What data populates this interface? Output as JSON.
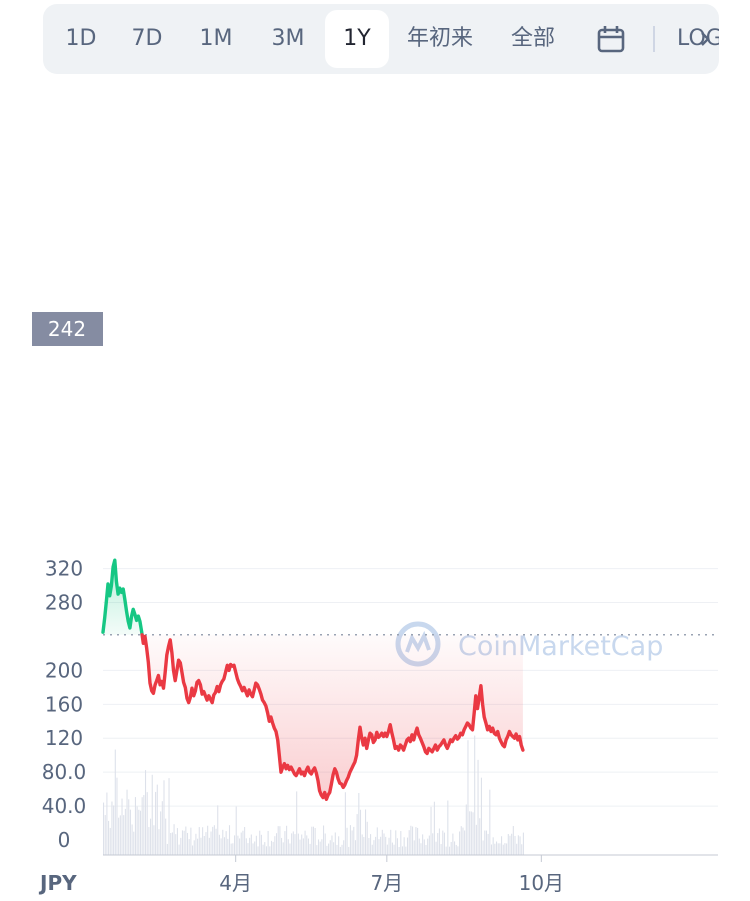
{
  "timeframe_tabs": [
    {
      "label": "1D",
      "active": false
    },
    {
      "label": "7D",
      "active": false
    },
    {
      "label": "1M",
      "active": false
    },
    {
      "label": "3M",
      "active": false
    },
    {
      "label": "1Y",
      "active": true
    },
    {
      "label": "年初来",
      "active": false
    },
    {
      "label": "全部",
      "active": false
    }
  ],
  "calendar_icon": "calendar-icon",
  "log_label": "LOG",
  "watermark": "CoinMarketCap",
  "currency_label": "JPY",
  "colors": {
    "up": "#16c784",
    "down": "#ea3943",
    "accent_bg": "#eff2f5",
    "label_bg": "#858ca2"
  },
  "chart_data": {
    "type": "line",
    "baseline_label": "242",
    "baseline_value": 242,
    "ylim": [
      0,
      350
    ],
    "y_ticks": [
      {
        "label": "320",
        "value": 320
      },
      {
        "label": "280",
        "value": 280
      },
      {
        "label": "200",
        "value": 200
      },
      {
        "label": "160",
        "value": 160
      },
      {
        "label": "120",
        "value": 120
      },
      {
        "label": "80.0",
        "value": 80
      },
      {
        "label": "40.0",
        "value": 40
      },
      {
        "label": "0",
        "value": 0
      }
    ],
    "x_ticks": [
      {
        "label": "4月",
        "day": 79
      },
      {
        "label": "7月",
        "day": 169
      },
      {
        "label": "10月",
        "day": 261
      }
    ],
    "x_days": 365,
    "price": [
      [
        0,
        245
      ],
      [
        1,
        262
      ],
      [
        2,
        282
      ],
      [
        3,
        302
      ],
      [
        4,
        288
      ],
      [
        5,
        300
      ],
      [
        6,
        322
      ],
      [
        7,
        330
      ],
      [
        8,
        305
      ],
      [
        9,
        290
      ],
      [
        10,
        297
      ],
      [
        11,
        292
      ],
      [
        12,
        296
      ],
      [
        13,
        284
      ],
      [
        14,
        270
      ],
      [
        15,
        258
      ],
      [
        16,
        250
      ],
      [
        17,
        264
      ],
      [
        18,
        272
      ],
      [
        19,
        266
      ],
      [
        20,
        259
      ],
      [
        21,
        264
      ],
      [
        22,
        258
      ],
      [
        23,
        246
      ],
      [
        24,
        232
      ],
      [
        25,
        240
      ],
      [
        26,
        226
      ],
      [
        27,
        210
      ],
      [
        28,
        185
      ],
      [
        29,
        176
      ],
      [
        30,
        173
      ],
      [
        31,
        183
      ],
      [
        32,
        188
      ],
      [
        33,
        194
      ],
      [
        34,
        183
      ],
      [
        35,
        187
      ],
      [
        36,
        179
      ],
      [
        37,
        197
      ],
      [
        38,
        218
      ],
      [
        39,
        228
      ],
      [
        40,
        236
      ],
      [
        41,
        221
      ],
      [
        42,
        200
      ],
      [
        43,
        188
      ],
      [
        44,
        200
      ],
      [
        45,
        212
      ],
      [
        46,
        209
      ],
      [
        47,
        198
      ],
      [
        48,
        186
      ],
      [
        49,
        180
      ],
      [
        50,
        167
      ],
      [
        51,
        162
      ],
      [
        52,
        168
      ],
      [
        53,
        179
      ],
      [
        54,
        170
      ],
      [
        55,
        176
      ],
      [
        56,
        186
      ],
      [
        57,
        188
      ],
      [
        58,
        183
      ],
      [
        59,
        172
      ],
      [
        60,
        175
      ],
      [
        61,
        170
      ],
      [
        62,
        165
      ],
      [
        63,
        170
      ],
      [
        64,
        166
      ],
      [
        65,
        162
      ],
      [
        66,
        171
      ],
      [
        67,
        174
      ],
      [
        68,
        181
      ],
      [
        69,
        175
      ],
      [
        70,
        183
      ],
      [
        71,
        187
      ],
      [
        72,
        190
      ],
      [
        73,
        198
      ],
      [
        74,
        206
      ],
      [
        75,
        200
      ],
      [
        76,
        207
      ],
      [
        77,
        205
      ],
      [
        78,
        206
      ],
      [
        79,
        198
      ],
      [
        80,
        190
      ],
      [
        81,
        185
      ],
      [
        82,
        181
      ],
      [
        83,
        176
      ],
      [
        84,
        180
      ],
      [
        85,
        175
      ],
      [
        86,
        170
      ],
      [
        87,
        177
      ],
      [
        88,
        172
      ],
      [
        89,
        169
      ],
      [
        90,
        177
      ],
      [
        91,
        185
      ],
      [
        92,
        183
      ],
      [
        93,
        178
      ],
      [
        94,
        172
      ],
      [
        95,
        165
      ],
      [
        96,
        162
      ],
      [
        97,
        158
      ],
      [
        98,
        150
      ],
      [
        99,
        140
      ],
      [
        100,
        145
      ],
      [
        101,
        138
      ],
      [
        102,
        132
      ],
      [
        103,
        128
      ],
      [
        104,
        118
      ],
      [
        105,
        100
      ],
      [
        106,
        80
      ],
      [
        107,
        86
      ],
      [
        108,
        90
      ],
      [
        109,
        84
      ],
      [
        110,
        88
      ],
      [
        111,
        83
      ],
      [
        112,
        86
      ],
      [
        113,
        82
      ],
      [
        114,
        78
      ],
      [
        115,
        76
      ],
      [
        116,
        80
      ],
      [
        117,
        84
      ],
      [
        118,
        78
      ],
      [
        119,
        80
      ],
      [
        120,
        76
      ],
      [
        121,
        82
      ],
      [
        122,
        86
      ],
      [
        123,
        80
      ],
      [
        124,
        78
      ],
      [
        125,
        82
      ],
      [
        126,
        85
      ],
      [
        127,
        79
      ],
      [
        128,
        70
      ],
      [
        129,
        58
      ],
      [
        130,
        53
      ],
      [
        131,
        50
      ],
      [
        132,
        56
      ],
      [
        133,
        48
      ],
      [
        134,
        53
      ],
      [
        135,
        56
      ],
      [
        136,
        66
      ],
      [
        137,
        77
      ],
      [
        138,
        84
      ],
      [
        139,
        80
      ],
      [
        140,
        72
      ],
      [
        141,
        67
      ],
      [
        142,
        66
      ],
      [
        143,
        62
      ],
      [
        144,
        65
      ],
      [
        145,
        70
      ],
      [
        146,
        74
      ],
      [
        147,
        80
      ],
      [
        148,
        84
      ],
      [
        149,
        88
      ],
      [
        150,
        92
      ],
      [
        151,
        100
      ],
      [
        152,
        118
      ],
      [
        153,
        133
      ],
      [
        154,
        121
      ],
      [
        155,
        112
      ],
      [
        156,
        120
      ],
      [
        157,
        108
      ],
      [
        158,
        118
      ],
      [
        159,
        126
      ],
      [
        160,
        124
      ],
      [
        161,
        115
      ],
      [
        162,
        118
      ],
      [
        163,
        127
      ],
      [
        164,
        121
      ],
      [
        165,
        123
      ],
      [
        166,
        126
      ],
      [
        167,
        122
      ],
      [
        168,
        126
      ],
      [
        169,
        122
      ],
      [
        170,
        128
      ],
      [
        171,
        136
      ],
      [
        172,
        126
      ],
      [
        173,
        118
      ],
      [
        174,
        108
      ],
      [
        175,
        110
      ],
      [
        176,
        106
      ],
      [
        177,
        112
      ],
      [
        178,
        110
      ],
      [
        179,
        106
      ],
      [
        180,
        112
      ],
      [
        181,
        118
      ],
      [
        182,
        120
      ],
      [
        183,
        116
      ],
      [
        184,
        124
      ],
      [
        185,
        118
      ],
      [
        186,
        126
      ],
      [
        187,
        132
      ],
      [
        188,
        124
      ],
      [
        189,
        120
      ],
      [
        190,
        115
      ],
      [
        191,
        110
      ],
      [
        192,
        104
      ],
      [
        193,
        102
      ],
      [
        194,
        108
      ],
      [
        195,
        106
      ],
      [
        196,
        104
      ],
      [
        197,
        108
      ],
      [
        198,
        112
      ],
      [
        199,
        106
      ],
      [
        200,
        110
      ],
      [
        201,
        112
      ],
      [
        202,
        115
      ],
      [
        203,
        118
      ],
      [
        204,
        112
      ],
      [
        205,
        108
      ],
      [
        206,
        113
      ],
      [
        207,
        118
      ],
      [
        208,
        116
      ],
      [
        209,
        120
      ],
      [
        210,
        123
      ],
      [
        211,
        119
      ],
      [
        212,
        121
      ],
      [
        213,
        126
      ],
      [
        214,
        124
      ],
      [
        215,
        130
      ],
      [
        216,
        134
      ],
      [
        217,
        138
      ],
      [
        218,
        136
      ],
      [
        219,
        132
      ],
      [
        220,
        130
      ],
      [
        221,
        150
      ],
      [
        222,
        170
      ],
      [
        223,
        155
      ],
      [
        224,
        168
      ],
      [
        225,
        182
      ],
      [
        226,
        160
      ],
      [
        227,
        145
      ],
      [
        228,
        138
      ],
      [
        229,
        130
      ],
      [
        230,
        134
      ],
      [
        231,
        128
      ],
      [
        232,
        132
      ],
      [
        233,
        126
      ],
      [
        234,
        124
      ],
      [
        235,
        128
      ],
      [
        236,
        120
      ],
      [
        237,
        116
      ],
      [
        238,
        112
      ],
      [
        239,
        110
      ],
      [
        240,
        118
      ],
      [
        241,
        122
      ],
      [
        242,
        128
      ],
      [
        243,
        124
      ],
      [
        244,
        122
      ],
      [
        245,
        120
      ],
      [
        246,
        125
      ],
      [
        247,
        118
      ],
      [
        248,
        122
      ],
      [
        249,
        112
      ],
      [
        250,
        106
      ]
    ]
  }
}
